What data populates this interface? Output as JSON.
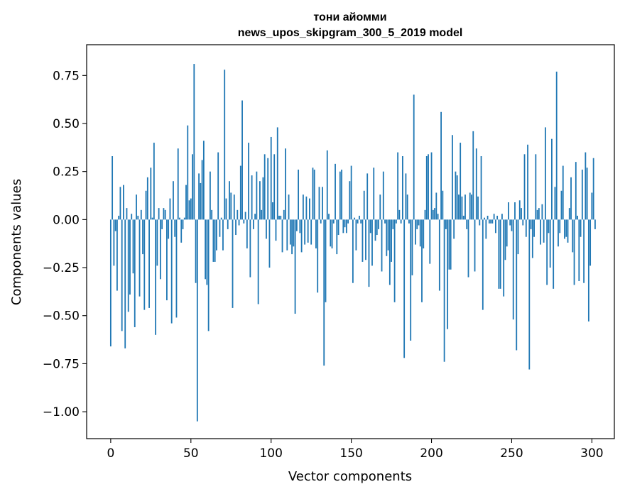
{
  "chart_data": {
    "type": "bar",
    "title": "тони айомми",
    "subtitle": "news_upos_skipgram_300_5_2019 model",
    "xlabel": "Vector components",
    "ylabel": "Components values",
    "xlim": [
      -15,
      314
    ],
    "ylim": [
      -1.14,
      0.91
    ],
    "xticks": [
      0,
      50,
      100,
      150,
      200,
      250,
      300
    ],
    "xtick_labels": [
      "0",
      "50",
      "100",
      "150",
      "200",
      "250",
      "300"
    ],
    "yticks": [
      0.75,
      0.5,
      0.25,
      0.0,
      -0.25,
      -0.5,
      -0.75,
      -1.0
    ],
    "ytick_labels": [
      "0.75",
      "0.50",
      "0.25",
      "0.00",
      "−0.25",
      "−0.50",
      "−0.75",
      "−1.00"
    ],
    "bar_color": "#1f77b4",
    "values": [
      -0.66,
      0.33,
      -0.24,
      -0.06,
      -0.37,
      0.02,
      0.17,
      -0.58,
      0.18,
      -0.67,
      0.06,
      -0.48,
      -0.39,
      0.03,
      -0.28,
      -0.56,
      0.13,
      0.02,
      -0.4,
      0.05,
      -0.18,
      -0.47,
      0.15,
      0.22,
      -0.46,
      0.27,
      0.01,
      0.4,
      -0.6,
      -0.24,
      0.06,
      -0.31,
      -0.05,
      0.06,
      0.05,
      -0.42,
      -0.1,
      0.11,
      -0.54,
      0.2,
      -0.09,
      -0.51,
      0.37,
      0.01,
      -0.12,
      -0.05,
      0.01,
      0.18,
      0.49,
      0.1,
      0.11,
      0.34,
      0.81,
      -0.33,
      -1.05,
      0.24,
      0.19,
      0.31,
      0.41,
      -0.31,
      -0.34,
      -0.58,
      0.25,
      0.05,
      -0.22,
      -0.22,
      -0.16,
      0.35,
      -0.09,
      0.01,
      -0.16,
      0.78,
      0.11,
      -0.05,
      0.2,
      0.14,
      -0.46,
      0.13,
      -0.08,
      0.05,
      -0.03,
      0.28,
      0.62,
      -0.02,
      0.04,
      -0.15,
      0.4,
      -0.3,
      0.23,
      -0.05,
      0.03,
      0.25,
      -0.44,
      0.2,
      0.05,
      0.22,
      0.34,
      -0.1,
      0.32,
      -0.25,
      0.43,
      0.09,
      0.34,
      -0.11,
      0.48,
      0.02,
      0.02,
      -0.17,
      0.05,
      0.37,
      -0.16,
      0.13,
      -0.13,
      -0.18,
      -0.14,
      -0.49,
      -0.06,
      0.26,
      -0.07,
      -0.17,
      0.13,
      -0.13,
      0.12,
      -0.12,
      0.11,
      -0.13,
      0.27,
      0.26,
      -0.15,
      -0.38,
      0.17,
      -0.02,
      0.17,
      -0.76,
      -0.43,
      0.36,
      0.03,
      -0.14,
      -0.15,
      -0.02,
      0.29,
      -0.18,
      -0.08,
      0.25,
      0.26,
      -0.07,
      -0.04,
      -0.07,
      -0.02,
      0.2,
      0.28,
      -0.33,
      0.01,
      -0.16,
      -0.02,
      0.02,
      -0.02,
      -0.22,
      0.15,
      -0.21,
      0.24,
      -0.35,
      -0.07,
      -0.24,
      0.27,
      -0.11,
      -0.08,
      -0.05,
      0.13,
      -0.27,
      0.25,
      -0.02,
      -0.19,
      -0.16,
      -0.34,
      -0.22,
      -0.05,
      -0.43,
      -0.02,
      0.35,
      0.05,
      -0.02,
      0.33,
      -0.72,
      0.24,
      0.13,
      -0.02,
      -0.63,
      -0.29,
      0.65,
      -0.13,
      -0.05,
      -0.03,
      -0.14,
      -0.43,
      -0.15,
      0.05,
      0.33,
      0.34,
      -0.23,
      0.35,
      0.05,
      0.06,
      0.14,
      0.03,
      -0.37,
      0.56,
      0.15,
      -0.74,
      -0.05,
      -0.57,
      -0.26,
      -0.26,
      0.44,
      -0.1,
      0.25,
      0.23,
      0.13,
      0.4,
      0.12,
      0.02,
      0.13,
      -0.05,
      -0.3,
      0.14,
      0.13,
      0.46,
      -0.27,
      0.37,
      0.12,
      -0.03,
      0.33,
      -0.47,
      0.01,
      -0.1,
      0.02,
      -0.02,
      -0.02,
      -0.02,
      0.03,
      -0.07,
      0.02,
      -0.36,
      -0.36,
      0.03,
      -0.4,
      -0.21,
      -0.14,
      0.09,
      -0.03,
      -0.06,
      -0.52,
      0.09,
      -0.68,
      -0.18,
      0.1,
      0.06,
      -0.03,
      0.34,
      -0.09,
      0.39,
      -0.78,
      -0.05,
      -0.2,
      -0.09,
      0.34,
      0.05,
      0.06,
      -0.13,
      0.08,
      -0.12,
      0.48,
      -0.34,
      -0.07,
      -0.25,
      0.42,
      -0.36,
      0.17,
      0.77,
      -0.14,
      -0.07,
      0.15,
      0.28,
      -0.1,
      -0.09,
      -0.12,
      0.06,
      0.22,
      -0.17,
      -0.34,
      0.3,
      0.02,
      -0.32,
      -0.09,
      0.26,
      -0.33,
      0.35,
      0.27,
      -0.53,
      -0.24,
      0.14,
      0.32,
      -0.05
    ]
  }
}
